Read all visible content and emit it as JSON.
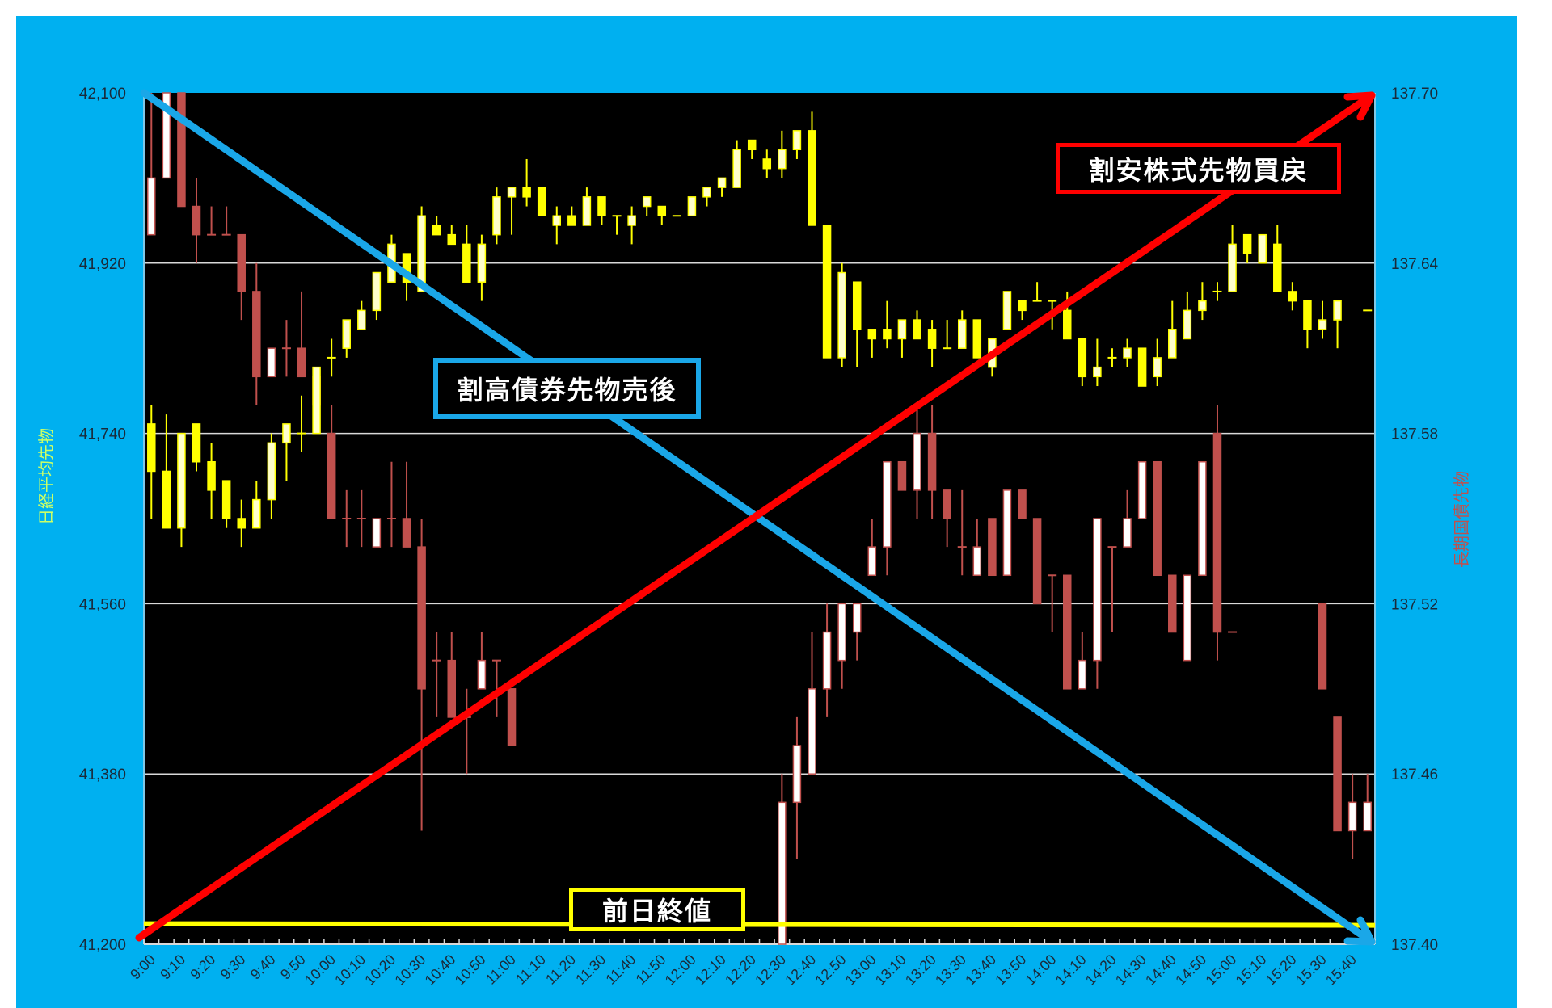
{
  "chart_data": {
    "type": "candlestick",
    "x_tick_labels": [
      "9:00",
      "9:10",
      "9:20",
      "9:30",
      "9:40",
      "9:50",
      "10:00",
      "10:10",
      "10:20",
      "10:30",
      "10:40",
      "10:50",
      "11:00",
      "11:10",
      "11:20",
      "11:30",
      "11:40",
      "11:50",
      "12:00",
      "12:10",
      "12:20",
      "12:30",
      "12:40",
      "12:50",
      "13:00",
      "13:10",
      "13:20",
      "13:30",
      "13:40",
      "13:50",
      "14:00",
      "14:10",
      "14:20",
      "14:30",
      "14:40",
      "14:50",
      "15:00",
      "15:10",
      "15:20",
      "15:30",
      "15:40"
    ],
    "interval_minutes": 5,
    "left_axis": {
      "label": "日経平均先物",
      "ylim": [
        41200,
        42100
      ],
      "ticks": [
        "41,200",
        "41,380",
        "41,560",
        "41,740",
        "41,920",
        "42,100"
      ],
      "tick_values": [
        41200,
        41380,
        41560,
        41740,
        41920,
        42100
      ],
      "color": "#ccff66"
    },
    "right_axis": {
      "label": "長期国債先物",
      "ylim": [
        137.4,
        137.7
      ],
      "ticks": [
        "137.40",
        "137.46",
        "137.52",
        "137.58",
        "137.64",
        "137.70"
      ],
      "tick_values": [
        137.4,
        137.46,
        137.52,
        137.58,
        137.64,
        137.7
      ],
      "color": "#c0504d"
    },
    "grid": true,
    "series": [
      {
        "axis": "left",
        "colors": {
          "down": "#ffff00",
          "up": "#ffffcc",
          "line": "#ffff00"
        },
        "ohlc_order": "O,H,L,C",
        "values": [
          [
            41750,
            41770,
            41650,
            41700
          ],
          [
            41700,
            41760,
            41640,
            41640
          ],
          [
            41640,
            41740,
            41620,
            41740
          ],
          [
            41750,
            41750,
            41700,
            41710
          ],
          [
            41710,
            41730,
            41650,
            41680
          ],
          [
            41690,
            41690,
            41640,
            41650
          ],
          [
            41650,
            41670,
            41620,
            41640
          ],
          [
            41640,
            41690,
            41640,
            41670
          ],
          [
            41670,
            41740,
            41650,
            41730
          ],
          [
            41730,
            41750,
            41690,
            41750
          ],
          [
            41740,
            41780,
            41720,
            41740
          ],
          [
            41740,
            41810,
            41740,
            41810
          ],
          [
            41820,
            41840,
            41800,
            41820
          ],
          [
            41830,
            41860,
            41820,
            41860
          ],
          [
            41850,
            41880,
            41850,
            41870
          ],
          [
            41870,
            41910,
            41860,
            41910
          ],
          [
            41900,
            41950,
            41900,
            41940
          ],
          [
            41930,
            41930,
            41880,
            41900
          ],
          [
            41890,
            41980,
            41890,
            41970
          ],
          [
            41960,
            41970,
            41950,
            41950
          ],
          [
            41950,
            41960,
            41940,
            41940
          ],
          [
            41940,
            41960,
            41900,
            41900
          ],
          [
            41900,
            41950,
            41880,
            41940
          ],
          [
            41950,
            42000,
            41940,
            41990
          ],
          [
            41990,
            42000,
            41950,
            42000
          ],
          [
            42000,
            42030,
            41980,
            41990
          ],
          [
            42000,
            42000,
            41970,
            41970
          ],
          [
            41960,
            41980,
            41940,
            41970
          ],
          [
            41970,
            41980,
            41960,
            41960
          ],
          [
            41960,
            42000,
            41960,
            41990
          ],
          [
            41990,
            41990,
            41960,
            41970
          ],
          [
            41970,
            41970,
            41950,
            41970
          ],
          [
            41960,
            41980,
            41940,
            41970
          ],
          [
            41980,
            41990,
            41970,
            41990
          ],
          [
            41980,
            41980,
            41960,
            41970
          ],
          [
            41970,
            41970,
            41970,
            41970
          ],
          [
            41970,
            41990,
            41970,
            41990
          ],
          [
            41990,
            42000,
            41980,
            42000
          ],
          [
            42000,
            42010,
            41990,
            42010
          ],
          [
            42000,
            42050,
            42000,
            42040
          ],
          [
            42050,
            42050,
            42030,
            42040
          ],
          [
            42030,
            42040,
            42010,
            42020
          ],
          [
            42020,
            42060,
            42010,
            42040
          ],
          [
            42040,
            42060,
            42030,
            42060
          ],
          [
            42060,
            42080,
            41960,
            41960
          ],
          [
            41960,
            41960,
            41820,
            41820
          ],
          [
            41820,
            41920,
            41810,
            41910
          ],
          [
            41900,
            41900,
            41810,
            41850
          ],
          [
            41850,
            41850,
            41820,
            41840
          ],
          [
            41850,
            41880,
            41830,
            41840
          ],
          [
            41840,
            41860,
            41820,
            41860
          ],
          [
            41860,
            41870,
            41840,
            41840
          ],
          [
            41850,
            41860,
            41810,
            41830
          ],
          [
            41830,
            41860,
            41830,
            41830
          ],
          [
            41830,
            41870,
            41830,
            41860
          ],
          [
            41860,
            41860,
            41820,
            41820
          ],
          [
            41810,
            41840,
            41800,
            41840
          ],
          [
            41850,
            41890,
            41850,
            41890
          ],
          [
            41880,
            41880,
            41860,
            41870
          ],
          [
            41880,
            41900,
            41880,
            41880
          ],
          [
            41880,
            41880,
            41850,
            41880
          ],
          [
            41870,
            41890,
            41840,
            41840
          ],
          [
            41840,
            41840,
            41790,
            41800
          ],
          [
            41800,
            41840,
            41790,
            41810
          ],
          [
            41820,
            41830,
            41810,
            41820
          ],
          [
            41820,
            41840,
            41810,
            41830
          ],
          [
            41830,
            41830,
            41790,
            41790
          ],
          [
            41800,
            41840,
            41790,
            41820
          ],
          [
            41820,
            41880,
            41820,
            41850
          ],
          [
            41840,
            41890,
            41840,
            41870
          ],
          [
            41870,
            41900,
            41860,
            41880
          ],
          [
            41890,
            41900,
            41880,
            41890
          ],
          [
            41890,
            41960,
            41890,
            41940
          ],
          [
            41950,
            41950,
            41920,
            41930
          ],
          [
            41920,
            41950,
            41920,
            41950
          ],
          [
            41940,
            41960,
            41890,
            41890
          ],
          [
            41890,
            41900,
            41870,
            41880
          ],
          [
            41880,
            41880,
            41830,
            41850
          ],
          [
            41850,
            41880,
            41840,
            41860
          ],
          [
            41860,
            41880,
            41830,
            41880
          ],
          null,
          [
            41870,
            41870,
            41870,
            41870
          ]
        ]
      },
      {
        "axis": "right",
        "colors": {
          "down": "#c0504d",
          "up": "#ffffff",
          "line": "#c0504d"
        },
        "ohlc_order": "O,H,L,C",
        "values": [
          [
            137.65,
            137.7,
            137.65,
            137.67
          ],
          [
            137.67,
            137.7,
            137.67,
            137.7
          ],
          [
            137.7,
            137.7,
            137.66,
            137.66
          ],
          [
            137.66,
            137.67,
            137.64,
            137.65
          ],
          [
            137.65,
            137.66,
            137.65,
            137.65
          ],
          [
            137.65,
            137.66,
            137.65,
            137.65
          ],
          [
            137.65,
            137.65,
            137.62,
            137.63
          ],
          [
            137.63,
            137.64,
            137.59,
            137.6
          ],
          [
            137.6,
            137.61,
            137.6,
            137.61
          ],
          [
            137.61,
            137.62,
            137.6,
            137.61
          ],
          [
            137.61,
            137.63,
            137.6,
            137.6
          ],
          [
            137.6,
            137.6,
            137.59,
            137.59
          ],
          [
            137.58,
            137.59,
            137.55,
            137.55
          ],
          [
            137.55,
            137.56,
            137.54,
            137.55
          ],
          [
            137.55,
            137.56,
            137.54,
            137.55
          ],
          [
            137.54,
            137.55,
            137.54,
            137.55
          ],
          [
            137.55,
            137.57,
            137.54,
            137.55
          ],
          [
            137.55,
            137.57,
            137.54,
            137.54
          ],
          [
            137.54,
            137.55,
            137.44,
            137.49
          ],
          [
            137.5,
            137.51,
            137.48,
            137.5
          ],
          [
            137.5,
            137.51,
            137.48,
            137.48
          ],
          [
            137.48,
            137.49,
            137.46,
            137.48
          ],
          [
            137.49,
            137.51,
            137.49,
            137.5
          ],
          [
            137.5,
            137.5,
            137.48,
            137.5
          ],
          [
            137.49,
            137.49,
            137.47,
            137.47
          ],
          null,
          null,
          null,
          null,
          null,
          null,
          null,
          null,
          null,
          null,
          null,
          null,
          null,
          null,
          null,
          null,
          null,
          [
            137.4,
            137.46,
            137.4,
            137.45
          ],
          [
            137.45,
            137.48,
            137.43,
            137.47
          ],
          [
            137.46,
            137.51,
            137.46,
            137.49
          ],
          [
            137.49,
            137.52,
            137.48,
            137.51
          ],
          [
            137.5,
            137.52,
            137.49,
            137.52
          ],
          [
            137.51,
            137.52,
            137.5,
            137.52
          ],
          [
            137.53,
            137.55,
            137.53,
            137.54
          ],
          [
            137.54,
            137.57,
            137.53,
            137.57
          ],
          [
            137.57,
            137.57,
            137.56,
            137.56
          ],
          [
            137.56,
            137.59,
            137.55,
            137.58
          ],
          [
            137.58,
            137.59,
            137.55,
            137.56
          ],
          [
            137.56,
            137.56,
            137.54,
            137.55
          ],
          [
            137.54,
            137.56,
            137.53,
            137.54
          ],
          [
            137.53,
            137.55,
            137.53,
            137.54
          ],
          [
            137.55,
            137.55,
            137.53,
            137.53
          ],
          [
            137.53,
            137.56,
            137.53,
            137.56
          ],
          [
            137.56,
            137.56,
            137.55,
            137.55
          ],
          [
            137.55,
            137.55,
            137.52,
            137.52
          ],
          [
            137.53,
            137.53,
            137.51,
            137.53
          ],
          [
            137.53,
            137.53,
            137.49,
            137.49
          ],
          [
            137.49,
            137.51,
            137.49,
            137.5
          ],
          [
            137.5,
            137.55,
            137.49,
            137.55
          ],
          [
            137.54,
            137.54,
            137.51,
            137.54
          ],
          [
            137.54,
            137.56,
            137.54,
            137.55
          ],
          [
            137.55,
            137.57,
            137.55,
            137.57
          ],
          [
            137.57,
            137.57,
            137.53,
            137.53
          ],
          [
            137.53,
            137.53,
            137.51,
            137.51
          ],
          [
            137.5,
            137.53,
            137.5,
            137.53
          ],
          [
            137.53,
            137.57,
            137.53,
            137.57
          ],
          [
            137.58,
            137.59,
            137.5,
            137.51
          ],
          [
            137.51,
            137.51,
            137.51,
            137.51
          ],
          null,
          null,
          null,
          null,
          null,
          [
            137.52,
            137.52,
            137.49,
            137.49
          ],
          [
            137.48,
            137.48,
            137.44,
            137.44
          ],
          [
            137.44,
            137.46,
            137.43,
            137.45
          ],
          [
            137.44,
            137.46,
            137.44,
            137.45
          ]
        ]
      }
    ],
    "annotations": {
      "bond_sell": {
        "text": "割高債券先物売後",
        "color": "#1aa7e8",
        "direction": "down-right"
      },
      "stock_buyback": {
        "text": "割安株式先物買戻",
        "color": "#ff0000",
        "direction": "up-right"
      },
      "prev_close": {
        "text": "前日終値",
        "color": "#ffff00",
        "value": 41220
      }
    }
  }
}
